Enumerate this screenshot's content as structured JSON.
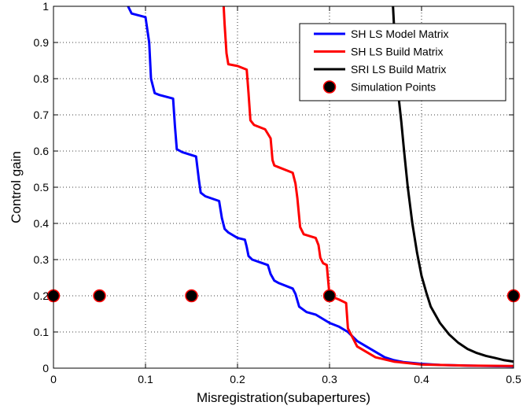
{
  "chart_data": {
    "type": "line",
    "xlabel": "Misregistration(subapertures)",
    "ylabel": "Control gain",
    "xlim": [
      0,
      0.5
    ],
    "ylim": [
      0,
      1
    ],
    "xticks": [
      0,
      0.1,
      0.2,
      0.3,
      0.4,
      0.5
    ],
    "xtick_labels": [
      "0",
      "0.1",
      "0.2",
      "0.3",
      "0.4",
      "0.5"
    ],
    "yticks": [
      0,
      0.1,
      0.2,
      0.3,
      0.4,
      0.5,
      0.6,
      0.7,
      0.8,
      0.9,
      1
    ],
    "ytick_labels": [
      "0",
      "0.1",
      "0.2",
      "0.3",
      "0.4",
      "0.5",
      "0.6",
      "0.7",
      "0.8",
      "0.9",
      "1"
    ],
    "grid": true,
    "legend_position": "top-right",
    "series": [
      {
        "name": "SH LS Model Matrix",
        "color": "#0000ff",
        "style": "line",
        "x": [
          0.081,
          0.085,
          0.1,
          0.104,
          0.106,
          0.11,
          0.115,
          0.13,
          0.132,
          0.134,
          0.14,
          0.155,
          0.158,
          0.16,
          0.165,
          0.18,
          0.183,
          0.186,
          0.19,
          0.2,
          0.208,
          0.21,
          0.212,
          0.216,
          0.225,
          0.233,
          0.236,
          0.24,
          0.245,
          0.26,
          0.263,
          0.267,
          0.275,
          0.285,
          0.3,
          0.31,
          0.32,
          0.33,
          0.34,
          0.35,
          0.36,
          0.37,
          0.38,
          0.4,
          0.42,
          0.45,
          0.5
        ],
        "y": [
          1.0,
          0.98,
          0.97,
          0.9,
          0.8,
          0.76,
          0.755,
          0.745,
          0.67,
          0.605,
          0.597,
          0.585,
          0.52,
          0.485,
          0.475,
          0.462,
          0.415,
          0.385,
          0.375,
          0.36,
          0.355,
          0.335,
          0.31,
          0.3,
          0.292,
          0.285,
          0.26,
          0.242,
          0.235,
          0.22,
          0.205,
          0.17,
          0.155,
          0.148,
          0.125,
          0.115,
          0.1,
          0.075,
          0.06,
          0.045,
          0.03,
          0.022,
          0.017,
          0.012,
          0.009,
          0.007,
          0.005
        ]
      },
      {
        "name": "SH LS Build Matrix",
        "color": "#ff0000",
        "style": "line",
        "x": [
          0.185,
          0.186,
          0.188,
          0.19,
          0.2,
          0.21,
          0.212,
          0.214,
          0.218,
          0.23,
          0.236,
          0.238,
          0.24,
          0.245,
          0.26,
          0.263,
          0.265,
          0.268,
          0.272,
          0.285,
          0.288,
          0.29,
          0.293,
          0.297,
          0.3,
          0.31,
          0.318,
          0.32,
          0.33,
          0.35,
          0.37,
          0.4,
          0.45,
          0.5
        ],
        "y": [
          1.0,
          0.95,
          0.87,
          0.84,
          0.835,
          0.825,
          0.76,
          0.685,
          0.672,
          0.66,
          0.635,
          0.575,
          0.56,
          0.555,
          0.54,
          0.51,
          0.47,
          0.39,
          0.37,
          0.36,
          0.34,
          0.305,
          0.29,
          0.285,
          0.2,
          0.19,
          0.18,
          0.11,
          0.06,
          0.03,
          0.018,
          0.01,
          0.007,
          0.006
        ]
      },
      {
        "name": "SRI LS Build Matrix",
        "color": "#000000",
        "style": "line",
        "x": [
          0.369,
          0.37,
          0.372,
          0.375,
          0.378,
          0.381,
          0.385,
          0.39,
          0.395,
          0.4,
          0.405,
          0.41,
          0.42,
          0.43,
          0.44,
          0.45,
          0.46,
          0.47,
          0.48,
          0.49,
          0.5
        ],
        "y": [
          1.0,
          0.95,
          0.86,
          0.75,
          0.68,
          0.6,
          0.5,
          0.4,
          0.32,
          0.255,
          0.21,
          0.17,
          0.125,
          0.093,
          0.07,
          0.053,
          0.042,
          0.034,
          0.028,
          0.022,
          0.018
        ]
      },
      {
        "name": "Simulation Points",
        "color": "#000000",
        "edge_color": "#ff0000",
        "style": "marker",
        "x": [
          0,
          0.05,
          0.15,
          0.3,
          0.5
        ],
        "y": [
          0.2,
          0.2,
          0.2,
          0.2,
          0.2
        ]
      }
    ]
  }
}
